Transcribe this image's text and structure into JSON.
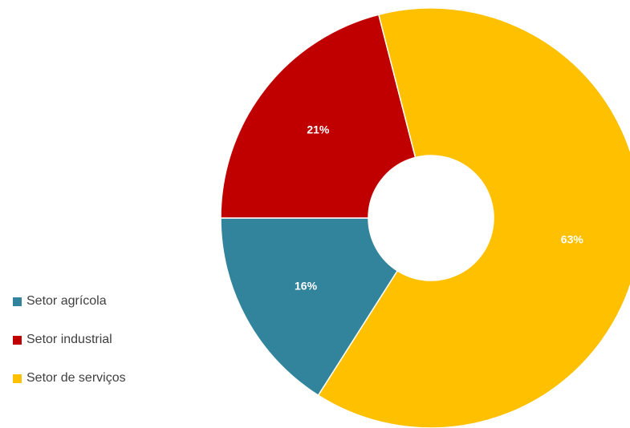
{
  "chart_data": {
    "type": "pie",
    "categories": [
      "Setor agrícola",
      "Setor industrial",
      "Setor de serviços"
    ],
    "values": [
      16,
      21,
      63
    ],
    "labels": [
      "16%",
      "21%",
      "63%"
    ],
    "colors": [
      "#31849B",
      "#C00000",
      "#FFC000"
    ],
    "donut": true,
    "legend_position": "left"
  }
}
